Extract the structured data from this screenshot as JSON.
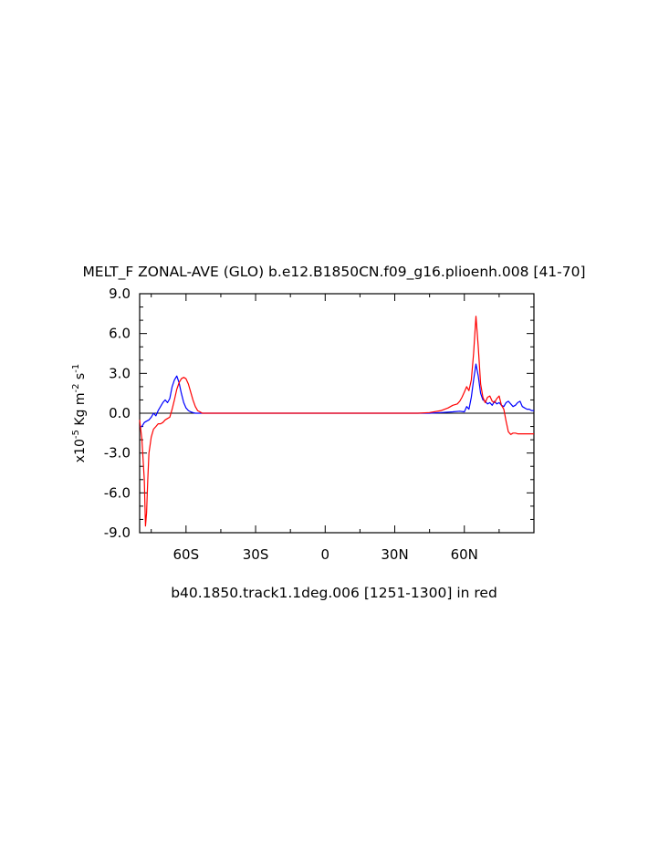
{
  "chart_data": {
    "type": "line",
    "title": "MELT_F ZONAL-AVE (GLO) b.e12.B1850CN.f09_g16.plioenh.008 [41-70]",
    "ylabel": {
      "prefix": "x10",
      "exp1": "-5",
      "mid": " Kg m",
      "exp2": "-2",
      "mid2": " s",
      "exp3": "-1"
    },
    "xlabel": "b40.1850.track1.1deg.006 [1251-1300] in red",
    "xlim": [
      -80,
      90
    ],
    "ylim": [
      -9,
      9
    ],
    "yticks": [
      {
        "value": -9,
        "label": "-9.0"
      },
      {
        "value": -6,
        "label": "-6.0"
      },
      {
        "value": -3,
        "label": "-3.0"
      },
      {
        "value": 0,
        "label": "0.0"
      },
      {
        "value": 3,
        "label": "3.0"
      },
      {
        "value": 6,
        "label": "6.0"
      },
      {
        "value": 9,
        "label": "9.0"
      }
    ],
    "xticks": [
      {
        "value": -60,
        "label": "60S"
      },
      {
        "value": -30,
        "label": "30S"
      },
      {
        "value": 0,
        "label": "0"
      },
      {
        "value": 30,
        "label": "30N"
      },
      {
        "value": 60,
        "label": "60N"
      }
    ],
    "zero_line": true,
    "series": [
      {
        "color": "#0000ff",
        "x": [
          -80,
          -79,
          -78,
          -77,
          -76,
          -75,
          -74,
          -73,
          -72,
          -71,
          -70,
          -69,
          -68,
          -67,
          -66,
          -65,
          -64,
          -63,
          -62,
          -61,
          -60,
          -59,
          -58,
          -57,
          -56,
          -55,
          -54,
          -53,
          45,
          50,
          55,
          58,
          60,
          61,
          62,
          63,
          64,
          65,
          66,
          67,
          68,
          69,
          70,
          71,
          72,
          73,
          74,
          75,
          76,
          77,
          78,
          79,
          80,
          81,
          82,
          83,
          84,
          85,
          86,
          87,
          88,
          89,
          90
        ],
        "y": [
          -1.0,
          -1.0,
          -0.7,
          -0.6,
          -0.5,
          -0.3,
          0.0,
          -0.2,
          0.2,
          0.5,
          0.8,
          1.0,
          0.8,
          1.1,
          2.0,
          2.5,
          2.8,
          2.3,
          1.5,
          0.8,
          0.4,
          0.2,
          0.1,
          0.05,
          0.0,
          0.0,
          0.0,
          0.0,
          0.0,
          0.05,
          0.1,
          0.15,
          0.1,
          0.5,
          0.3,
          1.2,
          2.5,
          3.7,
          2.8,
          1.5,
          1.0,
          0.9,
          0.7,
          0.8,
          0.6,
          0.9,
          0.7,
          0.8,
          0.6,
          0.5,
          0.8,
          0.9,
          0.7,
          0.5,
          0.6,
          0.8,
          0.9,
          0.5,
          0.4,
          0.3,
          0.3,
          0.2,
          0.2
        ]
      },
      {
        "color": "#ff0000",
        "x": [
          -80,
          -79,
          -78,
          -77.5,
          -77,
          -76.5,
          -76,
          -75,
          -74,
          -73,
          -72,
          -71,
          -70,
          -69,
          -68,
          -67,
          -66,
          -65,
          -64,
          -63,
          -62,
          -61,
          -60,
          -59,
          -58,
          -57,
          -56,
          -55,
          -54,
          -53,
          -52,
          40,
          45,
          50,
          53,
          55,
          57,
          58,
          59,
          60,
          61,
          62,
          63,
          64,
          65,
          66,
          67,
          68,
          69,
          70,
          71,
          72,
          73,
          74,
          75,
          76,
          77,
          78,
          79,
          80,
          81,
          82,
          83,
          84,
          85,
          86,
          87,
          88,
          89,
          90
        ],
        "y": [
          -0.5,
          -2.0,
          -5.0,
          -8.5,
          -7.5,
          -5.0,
          -3.0,
          -1.8,
          -1.2,
          -1.0,
          -0.8,
          -0.8,
          -0.7,
          -0.5,
          -0.4,
          -0.3,
          0.3,
          1.0,
          1.8,
          2.3,
          2.6,
          2.7,
          2.6,
          2.2,
          1.6,
          1.0,
          0.5,
          0.2,
          0.1,
          0.0,
          0.0,
          0.0,
          0.05,
          0.2,
          0.4,
          0.6,
          0.7,
          0.9,
          1.2,
          1.6,
          2.0,
          1.7,
          2.5,
          4.5,
          7.3,
          5.0,
          2.2,
          1.2,
          0.8,
          1.2,
          1.3,
          0.9,
          0.8,
          1.1,
          1.3,
          0.6,
          0.3,
          -0.6,
          -1.4,
          -1.6,
          -1.5,
          -1.5,
          -1.55,
          -1.55,
          -1.55,
          -1.55,
          -1.55,
          -1.55,
          -1.55,
          -1.55
        ]
      }
    ]
  }
}
